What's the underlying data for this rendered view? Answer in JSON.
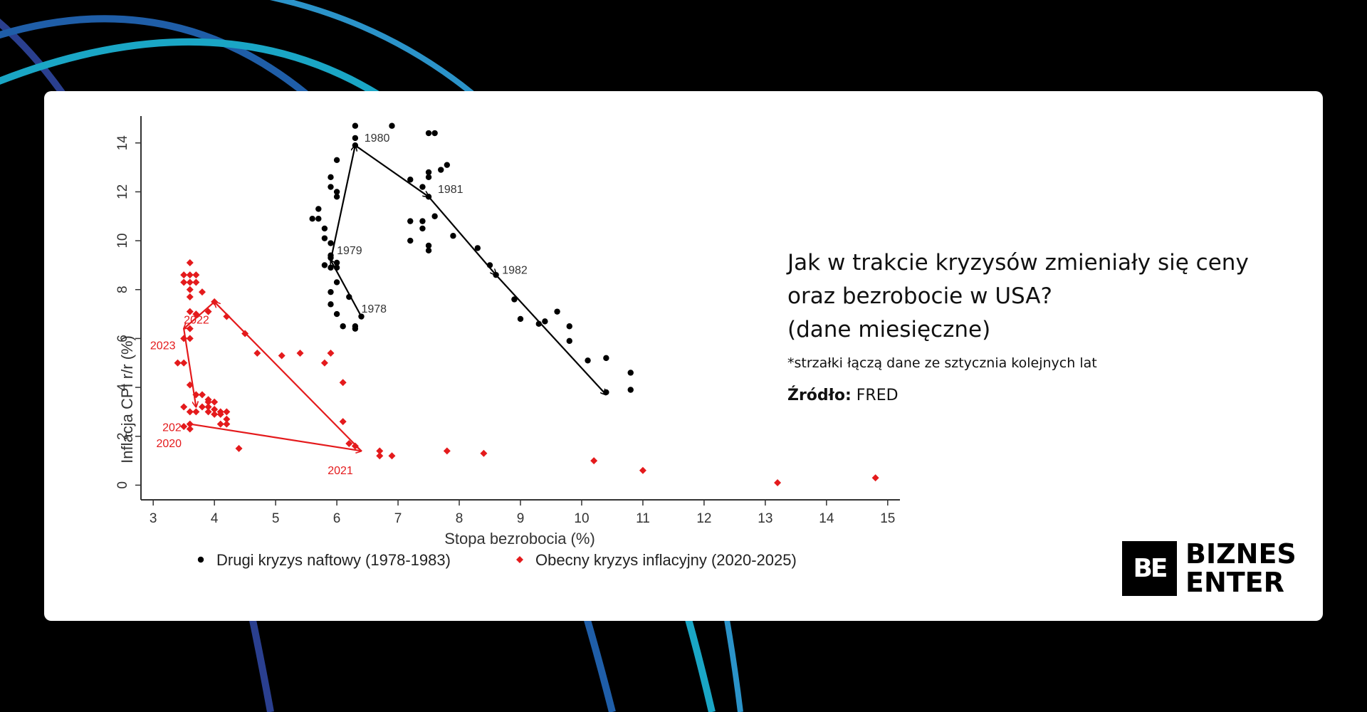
{
  "colors": {
    "background": "#000000",
    "card": "#ffffff",
    "arc_colors": [
      "#1aa6c5",
      "#1f5ea8",
      "#2a3f8f",
      "#2b93c9"
    ],
    "series_black": "#000000",
    "series_red": "#e41a1c"
  },
  "info": {
    "title": "Jak w trakcie kryzysów zmieniały się ceny\noraz bezrobocie w USA?\n(dane miesięczne)",
    "note": "*strzałki łączą dane ze sztycznia kolejnych lat",
    "source_label": "Źródło:",
    "source_value": "FRED"
  },
  "brand": {
    "icon_text": "BE",
    "line1": "BIZNES",
    "line2": "ENTER",
    "icon_name": "biznes-enter-logo-icon"
  },
  "chart_data": {
    "type": "scatter",
    "xlabel": "Stopa bezrobocia (%)",
    "ylabel": "Inflacja CPI r/r (%)",
    "xlim": [
      2.8,
      15.2
    ],
    "ylim": [
      -0.6,
      15.1
    ],
    "x_ticks": [
      3,
      4,
      5,
      6,
      7,
      8,
      9,
      10,
      11,
      12,
      13,
      14,
      15
    ],
    "y_ticks": [
      0,
      2,
      4,
      6,
      8,
      10,
      12,
      14
    ],
    "grid": false,
    "legend_position": "bottom",
    "series": [
      {
        "name": "Drugi kryzys naftowy (1978-1983)",
        "marker": "circle",
        "color": "#000000",
        "points": [
          [
            6.3,
            14.7
          ],
          [
            6.3,
            14.2
          ],
          [
            6.9,
            14.7
          ],
          [
            6.3,
            13.9
          ],
          [
            6.0,
            13.3
          ],
          [
            5.9,
            12.6
          ],
          [
            5.9,
            12.2
          ],
          [
            6.0,
            12.0
          ],
          [
            6.0,
            11.8
          ],
          [
            5.7,
            11.3
          ],
          [
            5.6,
            10.9
          ],
          [
            5.7,
            10.9
          ],
          [
            5.8,
            10.5
          ],
          [
            5.8,
            10.1
          ],
          [
            5.9,
            9.9
          ],
          [
            5.9,
            9.4
          ],
          [
            5.9,
            9.3
          ],
          [
            6.0,
            9.1
          ],
          [
            5.8,
            9.0
          ],
          [
            6.0,
            8.9
          ],
          [
            5.9,
            8.9
          ],
          [
            6.0,
            8.3
          ],
          [
            5.9,
            7.9
          ],
          [
            6.2,
            7.7
          ],
          [
            5.9,
            7.4
          ],
          [
            6.0,
            7.0
          ],
          [
            6.4,
            6.9
          ],
          [
            6.1,
            6.5
          ],
          [
            6.3,
            6.5
          ],
          [
            6.3,
            6.4
          ],
          [
            7.5,
            14.4
          ],
          [
            7.6,
            14.4
          ],
          [
            7.7,
            12.9
          ],
          [
            7.8,
            13.1
          ],
          [
            7.5,
            12.8
          ],
          [
            7.5,
            12.6
          ],
          [
            7.2,
            12.5
          ],
          [
            7.4,
            12.2
          ],
          [
            7.5,
            11.8
          ],
          [
            7.6,
            11.0
          ],
          [
            7.4,
            10.8
          ],
          [
            7.2,
            10.8
          ],
          [
            7.4,
            10.5
          ],
          [
            7.9,
            10.2
          ],
          [
            7.2,
            10.0
          ],
          [
            7.5,
            9.8
          ],
          [
            7.5,
            9.6
          ],
          [
            8.3,
            9.7
          ],
          [
            8.5,
            9.0
          ],
          [
            8.6,
            8.6
          ],
          [
            8.9,
            7.6
          ],
          [
            9.0,
            6.8
          ],
          [
            9.3,
            6.6
          ],
          [
            9.4,
            6.7
          ],
          [
            9.6,
            7.1
          ],
          [
            9.8,
            6.5
          ],
          [
            9.8,
            5.9
          ],
          [
            10.1,
            5.1
          ],
          [
            10.4,
            5.2
          ],
          [
            10.4,
            3.8
          ],
          [
            10.8,
            4.6
          ],
          [
            10.8,
            3.9
          ]
        ],
        "labels": [
          {
            "text": "1978",
            "x": 6.4,
            "y": 7.2
          },
          {
            "text": "1979",
            "x": 6.0,
            "y": 9.6
          },
          {
            "text": "1980",
            "x": 6.45,
            "y": 14.2
          },
          {
            "text": "1981",
            "x": 7.65,
            "y": 12.1
          },
          {
            "text": "1982",
            "x": 8.7,
            "y": 8.8
          }
        ],
        "arrows": [
          [
            [
              6.4,
              6.9
            ],
            [
              5.9,
              9.2
            ],
            [
              6.3,
              13.9
            ],
            [
              7.5,
              11.8
            ],
            [
              8.6,
              8.6
            ],
            [
              10.4,
              3.7
            ]
          ]
        ]
      },
      {
        "name": "Obecny kryzys inflacyjny (2020-2025)",
        "marker": "diamond",
        "color": "#e41a1c",
        "points": [
          [
            3.6,
            9.1
          ],
          [
            3.5,
            8.6
          ],
          [
            3.6,
            8.6
          ],
          [
            3.7,
            8.6
          ],
          [
            3.5,
            8.3
          ],
          [
            3.6,
            8.3
          ],
          [
            3.7,
            8.3
          ],
          [
            3.6,
            8.0
          ],
          [
            3.6,
            7.7
          ],
          [
            3.6,
            7.1
          ],
          [
            3.8,
            7.9
          ],
          [
            3.7,
            7.0
          ],
          [
            3.9,
            7.1
          ],
          [
            4.0,
            7.5
          ],
          [
            4.2,
            6.9
          ],
          [
            3.6,
            6.4
          ],
          [
            3.5,
            6.0
          ],
          [
            3.6,
            6.0
          ],
          [
            4.5,
            6.2
          ],
          [
            4.7,
            5.4
          ],
          [
            5.1,
            5.3
          ],
          [
            5.4,
            5.4
          ],
          [
            5.8,
            5.0
          ],
          [
            5.9,
            5.4
          ],
          [
            3.4,
            5.0
          ],
          [
            3.5,
            5.0
          ],
          [
            3.6,
            4.1
          ],
          [
            6.1,
            4.2
          ],
          [
            3.7,
            3.7
          ],
          [
            3.8,
            3.7
          ],
          [
            3.9,
            3.5
          ],
          [
            3.9,
            3.4
          ],
          [
            4.0,
            3.4
          ],
          [
            3.8,
            3.2
          ],
          [
            3.9,
            3.2
          ],
          [
            3.5,
            3.2
          ],
          [
            4.0,
            3.1
          ],
          [
            3.7,
            3.0
          ],
          [
            4.1,
            3.0
          ],
          [
            4.2,
            3.0
          ],
          [
            3.9,
            3.0
          ],
          [
            4.0,
            2.9
          ],
          [
            4.1,
            2.9
          ],
          [
            4.2,
            2.7
          ],
          [
            4.1,
            2.5
          ],
          [
            4.2,
            2.5
          ],
          [
            3.6,
            3.0
          ],
          [
            3.5,
            2.4
          ],
          [
            3.6,
            2.5
          ],
          [
            3.6,
            2.3
          ],
          [
            6.1,
            2.6
          ],
          [
            4.4,
            1.5
          ],
          [
            6.2,
            1.7
          ],
          [
            6.3,
            1.6
          ],
          [
            6.7,
            1.4
          ],
          [
            6.7,
            1.2
          ],
          [
            6.9,
            1.2
          ],
          [
            7.8,
            1.4
          ],
          [
            8.4,
            1.3
          ],
          [
            10.2,
            1.0
          ],
          [
            11.0,
            0.6
          ],
          [
            13.2,
            0.1
          ],
          [
            14.8,
            0.3
          ]
        ],
        "labels": [
          {
            "text": "2020",
            "x": 3.05,
            "y": 1.7
          },
          {
            "text": "202",
            "x": 3.15,
            "y": 2.35
          },
          {
            "text": "2021",
            "x": 5.85,
            "y": 0.6
          },
          {
            "text": "2022",
            "x": 3.5,
            "y": 6.75
          },
          {
            "text": "2023",
            "x": 2.95,
            "y": 5.7
          }
        ],
        "arrows": [
          [
            [
              3.6,
              2.5
            ],
            [
              6.4,
              1.4
            ],
            [
              4.0,
              7.5
            ],
            [
              3.5,
              6.4
            ],
            [
              3.7,
              3.2
            ]
          ]
        ]
      }
    ]
  }
}
